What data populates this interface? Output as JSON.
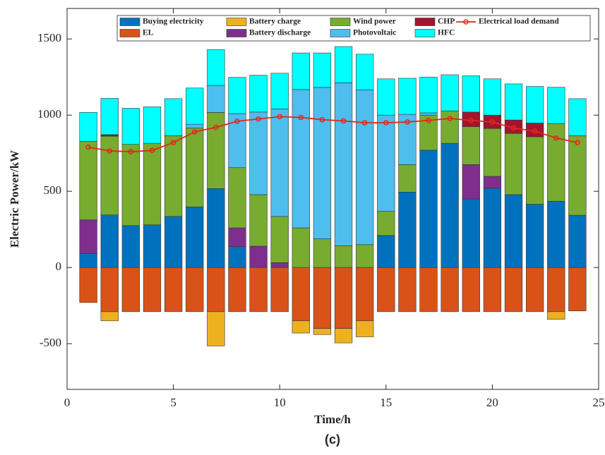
{
  "chart_data": {
    "type": "bar",
    "xlabel": "Time/h",
    "ylabel": "Electric Power/kW",
    "caption": "(c)",
    "x": [
      1,
      2,
      3,
      4,
      5,
      6,
      7,
      8,
      9,
      10,
      11,
      12,
      13,
      14,
      15,
      16,
      17,
      18,
      19,
      20,
      21,
      22,
      23,
      24
    ],
    "xlim": [
      0,
      25
    ],
    "xticks": [
      0,
      5,
      10,
      15,
      20,
      25
    ],
    "ylim": [
      -800,
      1700
    ],
    "yticks": [
      -500,
      0,
      500,
      1000,
      1500
    ],
    "series": [
      {
        "name": "Buying electricity",
        "color": "#0072bd",
        "values": [
          92,
          345,
          275,
          280,
          335,
          398,
          518,
          137,
          0,
          0,
          0,
          0,
          0,
          0,
          210,
          495,
          770,
          815,
          450,
          520,
          478,
          415,
          435,
          343
        ]
      },
      {
        "name": "Battery discharge",
        "color": "#7e2f8e",
        "values": [
          221,
          0,
          0,
          0,
          0,
          0,
          0,
          123,
          140,
          32,
          0,
          0,
          0,
          0,
          0,
          0,
          0,
          0,
          225,
          78,
          0,
          0,
          0,
          0
        ]
      },
      {
        "name": "Wind power",
        "color": "#77ac30",
        "values": [
          515,
          517,
          533,
          535,
          530,
          517,
          500,
          395,
          338,
          303,
          260,
          188,
          143,
          150,
          158,
          180,
          230,
          213,
          250,
          314,
          402,
          443,
          510,
          522
        ]
      },
      {
        "name": "Photovoltaic",
        "color": "#4dbeee",
        "values": [
          0,
          0,
          0,
          0,
          0,
          25,
          177,
          355,
          542,
          705,
          908,
          994,
          1069,
          1015,
          632,
          330,
          15,
          0,
          0,
          0,
          0,
          0,
          0,
          0
        ]
      },
      {
        "name": "CHP",
        "color": "#a2142f",
        "values": [
          0,
          10,
          0,
          0,
          0,
          0,
          0,
          0,
          0,
          0,
          0,
          0,
          0,
          0,
          0,
          0,
          0,
          0,
          95,
          88,
          88,
          90,
          0,
          0
        ]
      },
      {
        "name": "HFC",
        "color": "#00ffff",
        "values": [
          190,
          238,
          237,
          240,
          243,
          238,
          235,
          238,
          242,
          235,
          240,
          226,
          238,
          235,
          238,
          237,
          235,
          237,
          238,
          238,
          237,
          240,
          238,
          243
        ]
      },
      {
        "name": "EL",
        "color": "#d95319",
        "values": [
          -230,
          -290,
          -290,
          -290,
          -290,
          -290,
          -290,
          -290,
          -290,
          -290,
          -350,
          -400,
          -400,
          -350,
          -290,
          -290,
          -290,
          -290,
          -290,
          -290,
          -290,
          -290,
          -290,
          -285
        ]
      },
      {
        "name": "Battery charge",
        "color": "#edb120",
        "values": [
          0,
          -60,
          0,
          0,
          0,
          0,
          -225,
          0,
          0,
          0,
          -80,
          -40,
          -95,
          -105,
          0,
          0,
          0,
          0,
          0,
          0,
          0,
          0,
          -50,
          0
        ]
      },
      {
        "name": "Electrical load demand",
        "type": "line",
        "color": "#e3261c",
        "values": [
          790,
          765,
          760,
          768,
          820,
          890,
          920,
          960,
          975,
          990,
          985,
          970,
          962,
          950,
          950,
          955,
          965,
          978,
          965,
          955,
          915,
          895,
          850,
          820
        ]
      }
    ]
  }
}
